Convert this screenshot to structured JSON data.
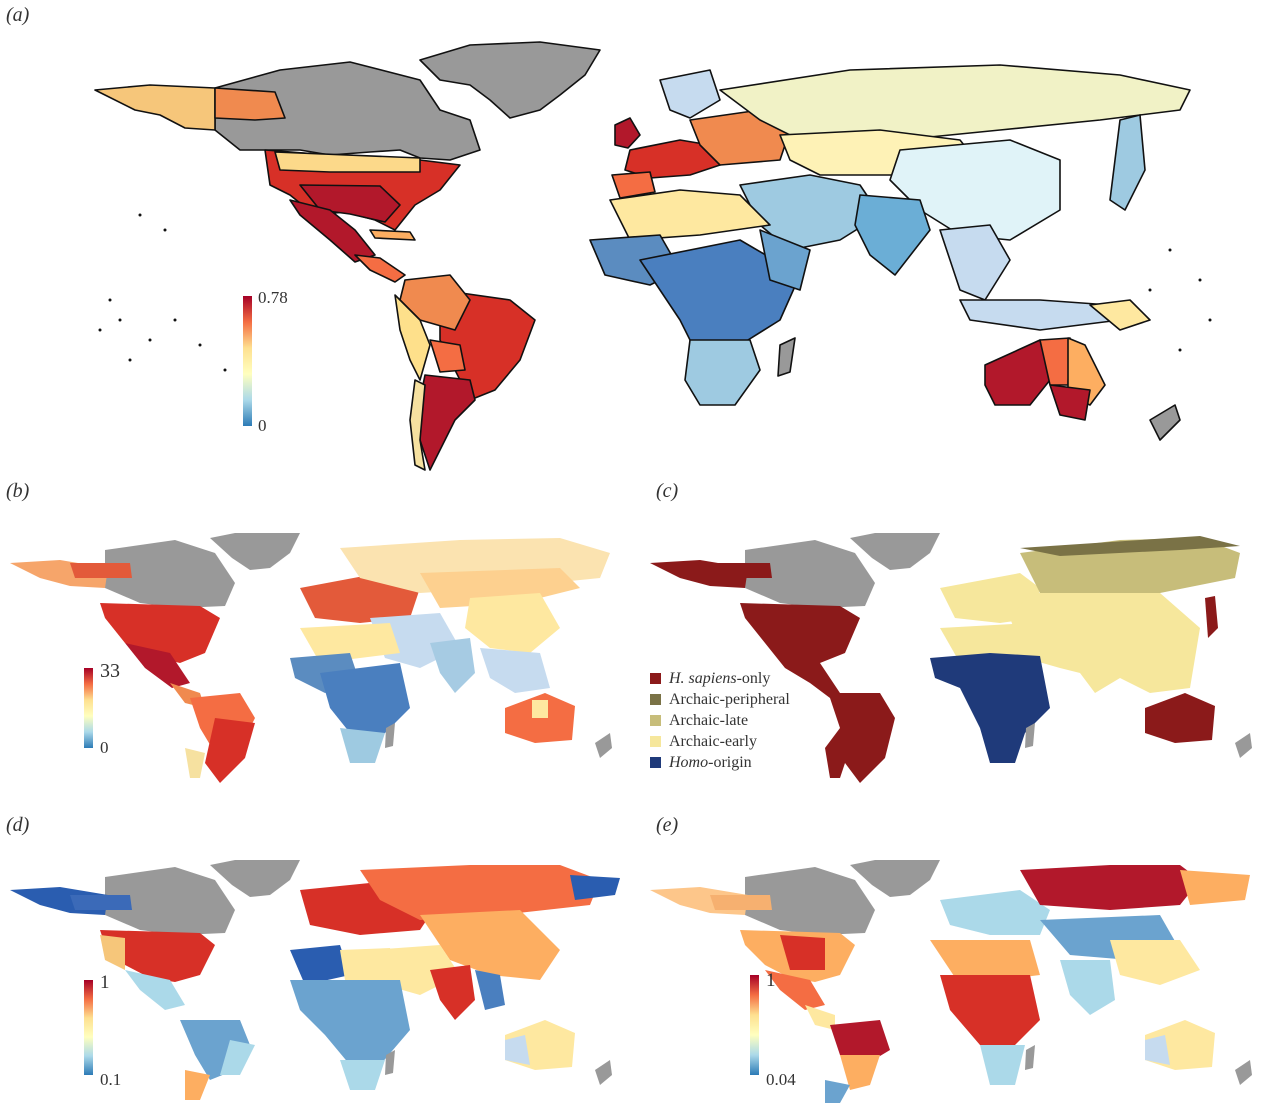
{
  "panels": {
    "a": {
      "label": "(a)",
      "scale_max": "0.78",
      "scale_min": "0"
    },
    "b": {
      "label": "(b)",
      "scale_max": "33",
      "scale_min": "0"
    },
    "c": {
      "label": "(c)"
    },
    "d": {
      "label": "(d)",
      "scale_max": "1",
      "scale_min": "0.1"
    },
    "e": {
      "label": "(e)",
      "scale_max": "1",
      "scale_min": "0.04"
    }
  },
  "legend": [
    {
      "label_italic": "H. sapiens",
      "label_rest": "-only",
      "color": "#8b1a1a"
    },
    {
      "label_italic": "",
      "label_rest": "Archaic-peripheral",
      "color": "#7a7246"
    },
    {
      "label_italic": "",
      "label_rest": "Archaic-late",
      "color": "#c7bd7a"
    },
    {
      "label_italic": "",
      "label_rest": "Archaic-early",
      "color": "#f6e79c"
    },
    {
      "label_italic": "Homo",
      "label_rest": "-origin",
      "color": "#1f3a7a"
    }
  ],
  "colors": {
    "missing": "#999999",
    "diverging_high": "#a50026",
    "diverging_mid": "#ffffbf",
    "diverging_low": "#2c7bb6"
  }
}
